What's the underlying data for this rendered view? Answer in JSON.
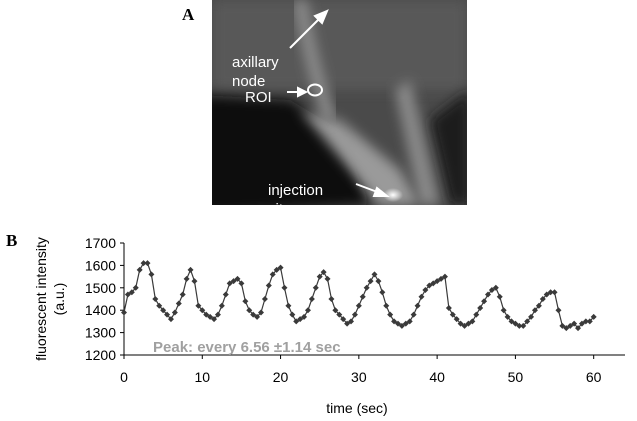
{
  "panel_a": {
    "label": "A",
    "annotations": {
      "node_lines": [
        "axillary",
        "node"
      ],
      "roi": "ROI",
      "injection_lines": [
        "injection",
        "site"
      ]
    }
  },
  "panel_b_label": "B",
  "chart_data": {
    "type": "line",
    "annotation": "Peak: every 6.56 ±1.14 sec",
    "xlabel": "time (sec)",
    "ylabel": [
      "fluorescent intensity",
      "(a.u.)"
    ],
    "color": "#3a3a3a",
    "marker": "diamond",
    "x": [
      0,
      0.5,
      1,
      1.5,
      2,
      2.5,
      3,
      3.5,
      4,
      4.5,
      5,
      5.5,
      6,
      6.5,
      7,
      7.5,
      8,
      8.5,
      9,
      9.5,
      10,
      10.5,
      11,
      11.5,
      12,
      12.5,
      13,
      13.5,
      14,
      14.5,
      15,
      15.5,
      16,
      16.5,
      17,
      17.5,
      18,
      18.5,
      19,
      19.5,
      20,
      20.5,
      21,
      21.5,
      22,
      22.5,
      23,
      23.5,
      24,
      24.5,
      25,
      25.5,
      26,
      26.5,
      27,
      27.5,
      28,
      28.5,
      29,
      29.5,
      30,
      30.5,
      31,
      31.5,
      32,
      32.5,
      33,
      33.5,
      34,
      34.5,
      35,
      35.5,
      36,
      36.5,
      37,
      37.5,
      38,
      38.5,
      39,
      39.5,
      40,
      40.5,
      41,
      41.5,
      42,
      42.5,
      43,
      43.5,
      44,
      44.5,
      45,
      45.5,
      46,
      46.5,
      47,
      47.5,
      48,
      48.5,
      49,
      49.5,
      50,
      50.5,
      51,
      51.5,
      52,
      52.5,
      53,
      53.5,
      54,
      54.5,
      55,
      55.5,
      56,
      56.5,
      57,
      57.5,
      58,
      58.5,
      59,
      59.5,
      60
    ],
    "values": [
      1390,
      1470,
      1480,
      1500,
      1580,
      1610,
      1610,
      1560,
      1450,
      1420,
      1400,
      1380,
      1360,
      1390,
      1430,
      1470,
      1540,
      1580,
      1530,
      1420,
      1400,
      1380,
      1370,
      1360,
      1380,
      1420,
      1470,
      1520,
      1530,
      1540,
      1520,
      1440,
      1400,
      1380,
      1370,
      1390,
      1450,
      1510,
      1560,
      1580,
      1590,
      1500,
      1420,
      1380,
      1350,
      1360,
      1370,
      1400,
      1450,
      1500,
      1550,
      1570,
      1540,
      1450,
      1400,
      1380,
      1360,
      1340,
      1350,
      1380,
      1420,
      1460,
      1500,
      1530,
      1560,
      1530,
      1480,
      1420,
      1380,
      1350,
      1340,
      1330,
      1340,
      1350,
      1380,
      1420,
      1460,
      1490,
      1510,
      1520,
      1530,
      1540,
      1550,
      1410,
      1380,
      1360,
      1340,
      1330,
      1340,
      1350,
      1380,
      1410,
      1440,
      1470,
      1490,
      1500,
      1460,
      1400,
      1370,
      1350,
      1340,
      1330,
      1330,
      1350,
      1370,
      1400,
      1420,
      1450,
      1470,
      1480,
      1480,
      1400,
      1330,
      1320,
      1330,
      1340,
      1320,
      1340,
      1350,
      1350,
      1370
    ],
    "xlim": [
      0,
      64
    ],
    "xticks": [
      0,
      10,
      20,
      30,
      40,
      50,
      60
    ],
    "ylim": [
      1200,
      1700
    ],
    "yticks": [
      1200,
      1300,
      1400,
      1500,
      1600,
      1700
    ]
  }
}
